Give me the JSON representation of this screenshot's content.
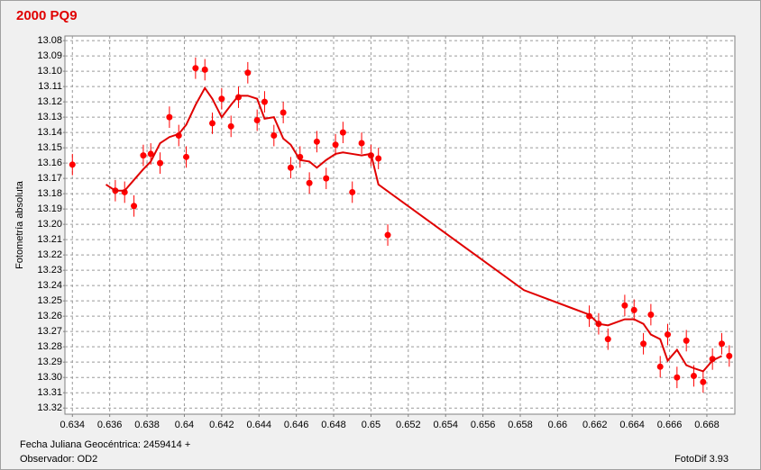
{
  "chart_data": {
    "type": "scatter",
    "title": "2000 PQ9",
    "y_label": "Fotometría absoluta",
    "x_label": "Fecha Juliana Geocéntrica: 2459414 +",
    "observer": "Observador: OD2",
    "software": "FotoDif 3.93",
    "grid": true,
    "xlim": [
      0.6336,
      0.6695
    ],
    "ylim": [
      13.324,
      13.077
    ],
    "xticks": [
      0.634,
      0.636,
      0.638,
      0.64,
      0.642,
      0.644,
      0.646,
      0.648,
      0.65,
      0.652,
      0.654,
      0.656,
      0.658,
      0.66,
      0.662,
      0.664,
      0.666,
      0.668
    ],
    "yticks": [
      13.08,
      13.09,
      {
        "value": 13.1,
        "label": "13.10"
      },
      13.11,
      13.12,
      13.13,
      13.14,
      13.15,
      13.16,
      13.17,
      13.18,
      13.19,
      {
        "value": 13.2,
        "label": "13.20"
      },
      13.21,
      13.22,
      13.23,
      13.24,
      13.25,
      13.26,
      13.27,
      13.28,
      13.29,
      {
        "value": 13.3,
        "label": "13.30"
      },
      13.31,
      13.32
    ],
    "series": [
      {
        "kind": "points",
        "color": "#ff0000",
        "x": [
          0.634,
          0.6363,
          0.6368,
          0.6373,
          0.6378,
          0.6382,
          0.6387,
          0.6392,
          0.6397,
          0.6401,
          0.6406,
          0.6411,
          0.6415,
          0.642,
          0.6425,
          0.6429,
          0.6434,
          0.6439,
          0.6443,
          0.6448,
          0.6453,
          0.6457,
          0.6462,
          0.6467,
          0.6471,
          0.6476,
          0.6481,
          0.6485,
          0.649,
          0.6495,
          0.65,
          0.6504,
          0.6509,
          0.6617,
          0.6622,
          0.6627,
          0.6636,
          0.6641,
          0.6646,
          0.665,
          0.6655,
          0.6659,
          0.6664,
          0.6669,
          0.6673,
          0.6678,
          0.6683,
          0.6688,
          0.6692
        ],
        "values": [
          13.161,
          13.178,
          13.179,
          13.188,
          13.155,
          13.154,
          13.16,
          13.13,
          13.142,
          13.156,
          13.098,
          13.099,
          13.134,
          13.118,
          13.136,
          13.117,
          13.101,
          13.132,
          13.12,
          13.142,
          13.127,
          13.163,
          13.156,
          13.173,
          13.146,
          13.17,
          13.148,
          13.14,
          13.179,
          13.147,
          13.155,
          13.157,
          13.207,
          13.26,
          13.265,
          13.275,
          13.253,
          13.256,
          13.278,
          13.259,
          13.293,
          13.272,
          13.3,
          13.276,
          13.299,
          13.303,
          13.288,
          13.278,
          13.286
        ],
        "errors": [
          0.007,
          0.007,
          0.007,
          0.007,
          0.007,
          0.007,
          0.007,
          0.007,
          0.007,
          0.007,
          0.007,
          0.007,
          0.007,
          0.007,
          0.007,
          0.007,
          0.007,
          0.007,
          0.007,
          0.007,
          0.007,
          0.007,
          0.007,
          0.007,
          0.007,
          0.007,
          0.007,
          0.007,
          0.007,
          0.007,
          0.007,
          0.007,
          0.007,
          0.007,
          0.007,
          0.007,
          0.007,
          0.007,
          0.007,
          0.007,
          0.007,
          0.007,
          0.007,
          0.007,
          0.007,
          0.007,
          0.007,
          0.007,
          0.007
        ]
      },
      {
        "kind": "line",
        "color": "#e00000",
        "x": [
          0.6358,
          0.6363,
          0.6368,
          0.6373,
          0.6378,
          0.6382,
          0.6387,
          0.6392,
          0.6397,
          0.6401,
          0.6406,
          0.6411,
          0.6415,
          0.642,
          0.6425,
          0.6429,
          0.6434,
          0.6439,
          0.6443,
          0.6448,
          0.6453,
          0.6457,
          0.6462,
          0.6467,
          0.6471,
          0.6476,
          0.6481,
          0.6485,
          0.649,
          0.6495,
          0.65,
          0.6504,
          0.6582,
          0.6617,
          0.6622,
          0.6627,
          0.6636,
          0.6641,
          0.6646,
          0.665,
          0.6655,
          0.6659,
          0.6664,
          0.6669,
          0.6673,
          0.6678,
          0.6683,
          0.6688
        ],
        "values": [
          13.174,
          13.178,
          13.178,
          13.171,
          13.164,
          13.159,
          13.147,
          13.143,
          13.141,
          13.135,
          13.122,
          13.111,
          13.118,
          13.13,
          13.122,
          13.116,
          13.116,
          13.118,
          13.131,
          13.13,
          13.144,
          13.148,
          13.158,
          13.159,
          13.163,
          13.158,
          13.154,
          13.153,
          13.154,
          13.155,
          13.154,
          13.174,
          13.243,
          13.259,
          13.265,
          13.266,
          13.262,
          13.262,
          13.265,
          13.272,
          13.275,
          13.289,
          13.282,
          13.292,
          13.294,
          13.296,
          13.289,
          13.286
        ]
      }
    ]
  }
}
